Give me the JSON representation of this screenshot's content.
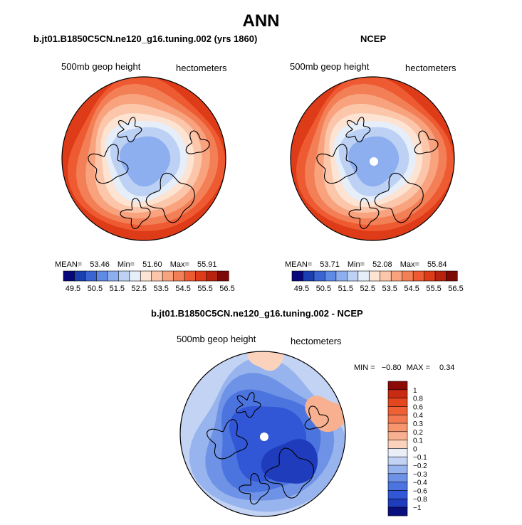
{
  "figure": {
    "title": "ANN"
  },
  "panels": [
    {
      "title": "b.jt01.B1850C5CN.ne120_g16.tuning.002 (yrs 1860)",
      "variable": "500mb geop height",
      "units": "hectometers",
      "stats": {
        "mean_label": "MEAN=",
        "mean": "53.46",
        "min_label": "Min=",
        "min": "51.60",
        "max_label": "Max=",
        "max": "55.91"
      },
      "polar_dot": false
    },
    {
      "title": "NCEP",
      "variable": "500mb geop height",
      "units": "hectometers",
      "stats": {
        "mean_label": "MEAN=",
        "mean": "53.71",
        "min_label": "Min=",
        "min": "52.08",
        "max_label": "Max=",
        "max": "55.84"
      },
      "polar_dot": true
    },
    {
      "title": "b.jt01.B1850C5CN.ne120_g16.tuning.002 - NCEP",
      "variable": "500mb geop height",
      "units": "hectometers",
      "stats": {
        "min_label": "MIN =",
        "min": "−0.80",
        "max_label": "MAX =",
        "max": "0.34"
      },
      "polar_dot": true
    }
  ],
  "colorbar_field": {
    "tick_labels": [
      "49.5",
      "50.5",
      "51.5",
      "52.5",
      "53.5",
      "54.5",
      "55.5",
      "56.5"
    ],
    "colors": [
      "#08087a",
      "#1a3fb0",
      "#3a64d2",
      "#5f8ae6",
      "#8daeef",
      "#bcd1f4",
      "#e6eef9",
      "#fde3d2",
      "#fbc6aa",
      "#f8a27e",
      "#f37f57",
      "#ee5a32",
      "#de3b18",
      "#b8230f",
      "#7c0a06"
    ]
  },
  "colorbar_diff": {
    "tick_labels": [
      "1",
      "0.8",
      "0.6",
      "0.4",
      "0.3",
      "0.2",
      "0.1",
      "0",
      "−0.1",
      "−0.2",
      "−0.3",
      "−0.4",
      "−0.6",
      "−0.8",
      "−1"
    ],
    "colors": [
      "#8b0a05",
      "#c92b12",
      "#e4471f",
      "#f06035",
      "#f37a50",
      "#f6956e",
      "#f8b190",
      "#fbd2bc",
      "#e9eef7",
      "#c2d3f3",
      "#97b4ee",
      "#6d92e6",
      "#4c74df",
      "#3257d6",
      "#1f3cbc",
      "#0a0f7e"
    ]
  },
  "colors": {
    "land_outline": "#000000",
    "polar_dot": "#ffffff"
  }
}
